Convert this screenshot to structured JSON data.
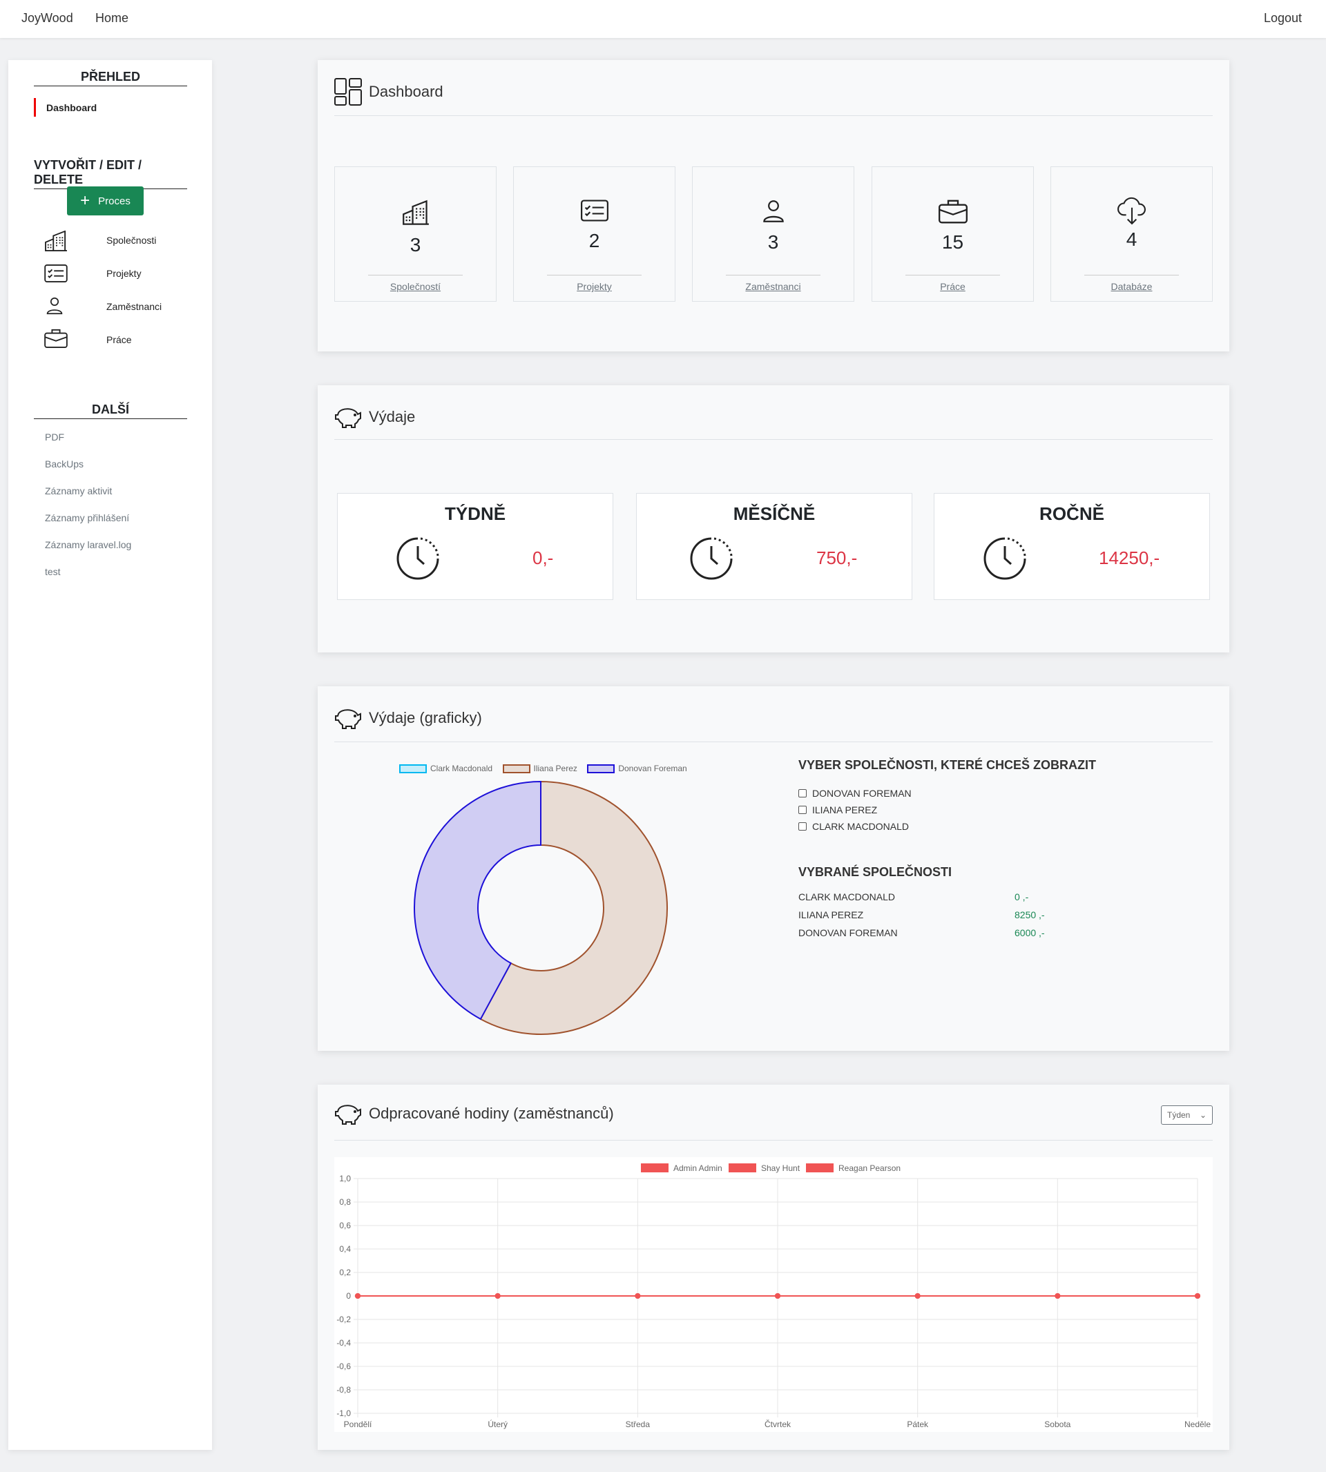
{
  "navbar": {
    "brand": "JoyWood",
    "home": "Home",
    "logout": "Logout"
  },
  "sidebar": {
    "overview_heading": "PŘEHLED",
    "dashboard": "Dashboard",
    "crud_heading": "VYTVOŘIT / EDIT / DELETE",
    "process_button": "Proces",
    "crud_items": [
      {
        "label": "Společnosti",
        "icon": "building-icon"
      },
      {
        "label": "Projekty",
        "icon": "checklist-icon"
      },
      {
        "label": "Zaměstnanci",
        "icon": "person-icon"
      },
      {
        "label": "Práce",
        "icon": "briefcase-icon"
      }
    ],
    "other_heading": "DALŠÍ",
    "other_items": [
      "PDF",
      "BackUps",
      "Záznamy aktivit",
      "Záznamy přihlášení",
      "Záznamy laravel.log",
      "test"
    ]
  },
  "dashboard": {
    "title": "Dashboard",
    "stats": [
      {
        "value": "3",
        "label": "Společností",
        "icon": "building-icon"
      },
      {
        "value": "2",
        "label": "Projekty",
        "icon": "checklist-icon"
      },
      {
        "value": "3",
        "label": "Zaměstnanci",
        "icon": "person-icon"
      },
      {
        "value": "15",
        "label": "Práce",
        "icon": "briefcase-icon"
      },
      {
        "value": "4",
        "label": "Databáze",
        "icon": "cloud-download-icon"
      }
    ]
  },
  "expenses": {
    "title": "Výdaje",
    "periods": [
      {
        "label": "TÝDNĚ",
        "value": "0,-"
      },
      {
        "label": "MĚSÍČNĚ",
        "value": "750,-"
      },
      {
        "label": "ROČNĚ",
        "value": "14250,-"
      }
    ]
  },
  "expenses_chart": {
    "title": "Výdaje (graficky)",
    "select_heading": "VYBER SPOLEČNOSTI, KTERÉ CHCEŠ ZOBRAZIT",
    "checkboxes": [
      "DONOVAN FOREMAN",
      "ILIANA PEREZ",
      "CLARK MACDONALD"
    ],
    "selected_heading": "VYBRANÉ SPOLEČNOSTI",
    "selected": [
      {
        "name": "CLARK MACDONALD",
        "value": "0 ,-"
      },
      {
        "name": "ILIANA PEREZ",
        "value": "8250 ,-"
      },
      {
        "name": "DONOVAN FOREMAN",
        "value": "6000 ,-"
      }
    ]
  },
  "hours": {
    "title": "Odpracované hodiny (zaměstnanců)",
    "period_select": "Týden"
  },
  "chart_data": [
    {
      "type": "pie",
      "variant": "doughnut",
      "categories": [
        "Clark Macdonald",
        "Iliana Perez",
        "Donovan Foreman"
      ],
      "values": [
        0,
        8250,
        6000
      ],
      "colors": [
        {
          "fill": "#c6eefb",
          "stroke": "#00b8f0"
        },
        {
          "fill": "#e8dcd4",
          "stroke": "#a0522d"
        },
        {
          "fill": "#d0cdf3",
          "stroke": "#1d10d8"
        }
      ],
      "legend": "top"
    },
    {
      "type": "line",
      "categories": [
        "Pondělí",
        "Úterý",
        "Středa",
        "Čtvrtek",
        "Pátek",
        "Sobota",
        "Neděle"
      ],
      "series": [
        {
          "name": "Admin Admin",
          "values": [
            0,
            0,
            0,
            0,
            0,
            0,
            0
          ]
        },
        {
          "name": "Shay Hunt",
          "values": [
            0,
            0,
            0,
            0,
            0,
            0,
            0
          ]
        },
        {
          "name": "Reagan Pearson",
          "values": [
            0,
            0,
            0,
            0,
            0,
            0,
            0
          ]
        }
      ],
      "color": "#f05454",
      "ylim": [
        -1,
        1
      ],
      "yticks": [
        "1,0",
        "0,8",
        "0,6",
        "0,4",
        "0,2",
        "0",
        "-0,2",
        "-0,4",
        "-0,6",
        "-0,8",
        "-1,0"
      ],
      "grid": true,
      "legend": "top"
    }
  ]
}
